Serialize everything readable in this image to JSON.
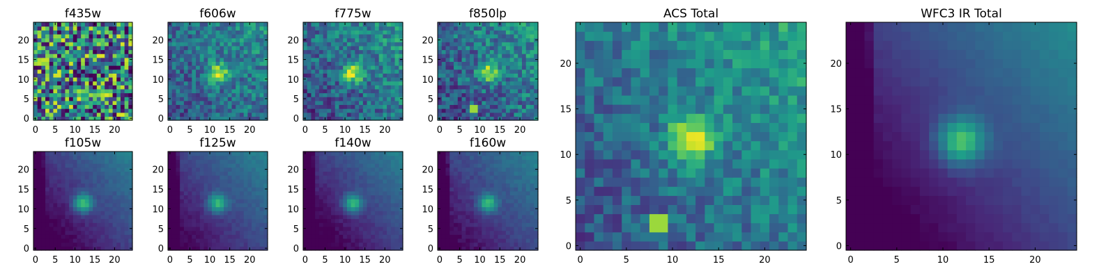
{
  "chart_data": {
    "type": "heatmap",
    "colormap": "viridis",
    "grid": false,
    "legend": "none",
    "panels": [
      {
        "title": "f435w",
        "source": "noise",
        "noise": 1.0,
        "blob": 0.0,
        "grad": 0.0,
        "bright": 0.45,
        "hotspot": false
      },
      {
        "title": "f606w",
        "source": "noise",
        "noise": 0.38,
        "blob": 0.6,
        "grad": 0.25,
        "bright": 0.3,
        "hotspot": false
      },
      {
        "title": "f775w",
        "source": "noise",
        "noise": 0.4,
        "blob": 0.6,
        "grad": 0.3,
        "bright": 0.28,
        "hotspot": false
      },
      {
        "title": "f850lp",
        "source": "noise",
        "noise": 0.42,
        "blob": 0.55,
        "grad": 0.3,
        "bright": 0.28,
        "hotspot": true
      },
      {
        "title": "f105w",
        "source": "smooth",
        "noise": 0.07,
        "blob": 0.55,
        "grad": 0.55,
        "bright": 0.0,
        "hotspot": false
      },
      {
        "title": "f125w",
        "source": "smooth",
        "noise": 0.07,
        "blob": 0.5,
        "grad": 0.5,
        "bright": 0.05,
        "hotspot": false
      },
      {
        "title": "f140w",
        "source": "smooth",
        "noise": 0.07,
        "blob": 0.5,
        "grad": 0.55,
        "bright": 0.0,
        "hotspot": false
      },
      {
        "title": "f160w",
        "source": "smooth",
        "noise": 0.08,
        "blob": 0.5,
        "grad": 0.5,
        "bright": 0.05,
        "hotspot": false
      },
      {
        "title": "ACS Total",
        "source": "noise",
        "noise": 0.3,
        "blob": 0.55,
        "grad": 0.35,
        "bright": 0.3,
        "hotspot": true
      },
      {
        "title": "WFC3 IR Total",
        "source": "smooth",
        "noise": 0.03,
        "blob": 0.55,
        "grad": 0.6,
        "bright": 0.0,
        "hotspot": false
      }
    ],
    "pixels": 25,
    "x_range": [
      -0.5,
      24.5
    ],
    "y_range": [
      -0.5,
      24.5
    ],
    "small_ticks": [
      0,
      5,
      10,
      15,
      20
    ],
    "small_xticks": [
      0,
      5,
      10,
      15,
      20
    ],
    "small_yticks": [
      0,
      5,
      10,
      15,
      20
    ],
    "large_ticks": [
      0,
      5,
      10,
      15,
      20
    ],
    "large_xticks": [
      0,
      5,
      10,
      15,
      20
    ],
    "large_yticks": [
      0,
      5,
      10,
      15,
      20
    ],
    "tick_labels": [
      "0",
      "5",
      "10",
      "15",
      "20"
    ]
  }
}
